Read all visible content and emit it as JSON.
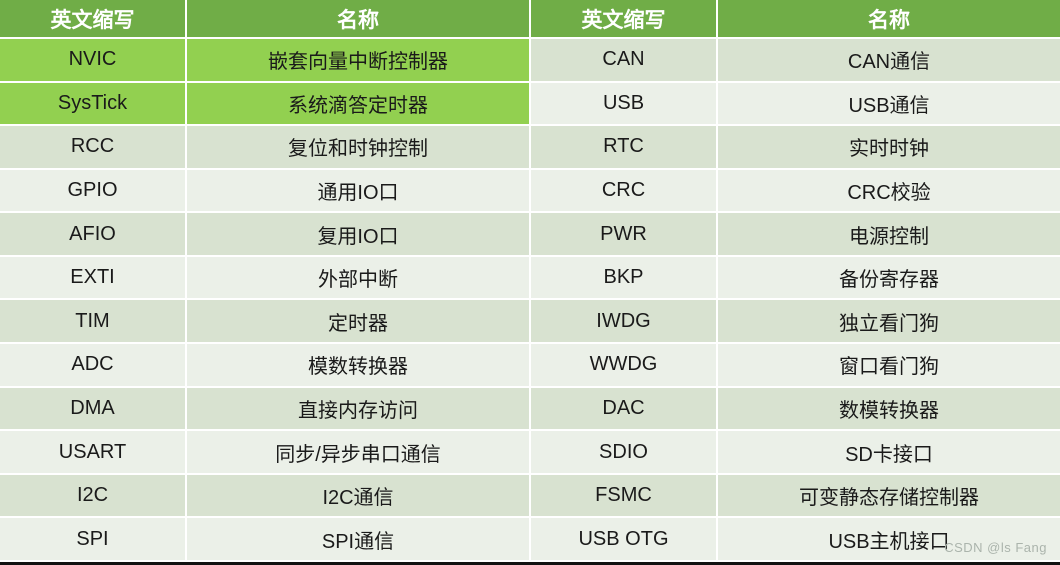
{
  "chart_data": {
    "type": "table",
    "title": "STM32 peripheral abbreviations and names",
    "columns": [
      "英文缩写",
      "名称",
      "英文缩写",
      "名称"
    ],
    "rows": [
      [
        "NVIC",
        "嵌套向量中断控制器",
        "CAN",
        "CAN通信"
      ],
      [
        "SysTick",
        "系统滴答定时器",
        "USB",
        "USB通信"
      ],
      [
        "RCC",
        "复位和时钟控制",
        "RTC",
        "实时时钟"
      ],
      [
        "GPIO",
        "通用IO口",
        "CRC",
        "CRC校验"
      ],
      [
        "AFIO",
        "复用IO口",
        "PWR",
        "电源控制"
      ],
      [
        "EXTI",
        "外部中断",
        "BKP",
        "备份寄存器"
      ],
      [
        "TIM",
        "定时器",
        "IWDG",
        "独立看门狗"
      ],
      [
        "ADC",
        "模数转换器",
        "WWDG",
        "窗口看门狗"
      ],
      [
        "DMA",
        "直接内存访问",
        "DAC",
        "数模转换器"
      ],
      [
        "USART",
        "同步/异步串口通信",
        "SDIO",
        "SD卡接口"
      ],
      [
        "I2C",
        "I2C通信",
        "FSMC",
        "可变静态存储控制器"
      ],
      [
        "SPI",
        "SPI通信",
        "USB OTG",
        "USB主机接口"
      ]
    ],
    "highlighted_left_rows": [
      "NVIC",
      "SysTick"
    ],
    "legend_position": "none",
    "grid": "white-separators"
  },
  "colors": {
    "header_bg": "#70AD47",
    "header_text": "#FFFFFF",
    "highlight_bg": "#92D050",
    "band_dark": "#D8E2D0",
    "band_light": "#EBF0E8",
    "grid_line": "#FFFFFF",
    "bottom_border": "#111111",
    "body_text": "#1A1A1A"
  },
  "watermark": "CSDN @ls Fang"
}
